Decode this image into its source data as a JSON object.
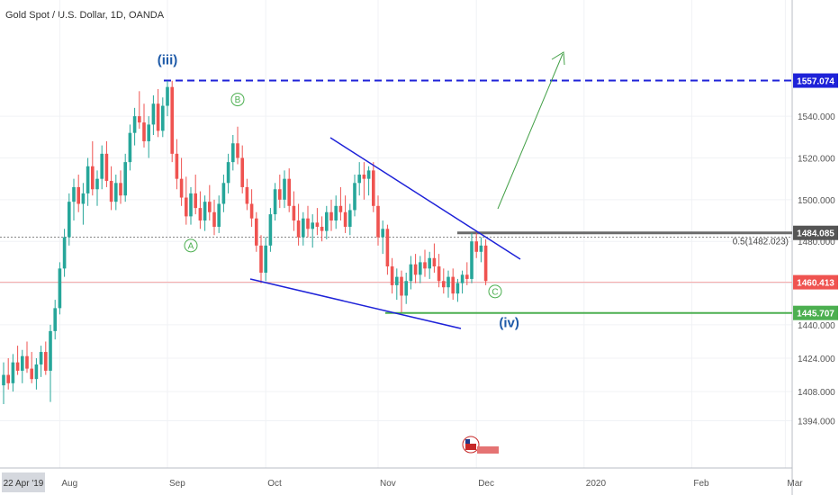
{
  "header": {
    "title": "Gold Spot / U.S. Dollar, 1D, OANDA"
  },
  "chart_data": {
    "type": "candlestick",
    "title": "Gold Spot / U.S. Dollar, 1D, OANDA",
    "ylim": [
      1380,
      1575
    ],
    "y_ticks": [
      {
        "value": 1394,
        "label": "1394.000"
      },
      {
        "value": 1408,
        "label": "1408.000"
      },
      {
        "value": 1424,
        "label": "1424.000"
      },
      {
        "value": 1440,
        "label": "1440.000"
      },
      {
        "value": 1460,
        "label": "1460.000"
      },
      {
        "value": 1480,
        "label": "1480.000"
      },
      {
        "value": 1500,
        "label": "1500.000"
      },
      {
        "value": 1520,
        "label": "1520.000"
      },
      {
        "value": 1540,
        "label": "1540.000"
      }
    ],
    "x_ticks": [
      {
        "bar": 12,
        "label": "Aug"
      },
      {
        "bar": 35,
        "label": "Sep"
      },
      {
        "bar": 56,
        "label": "Oct"
      },
      {
        "bar": 80,
        "label": "Nov"
      },
      {
        "bar": 101,
        "label": "Dec"
      },
      {
        "bar": 124,
        "label": "2020"
      },
      {
        "bar": 147,
        "label": "Feb"
      },
      {
        "bar": 167,
        "label": "Mar"
      }
    ],
    "x_start_label": "22 Apr '19",
    "price_labels": [
      {
        "value": 1557.074,
        "label": "1557.074",
        "color": "#1e22d8"
      },
      {
        "value": 1484.085,
        "label": "1484.085",
        "color": "#555555"
      },
      {
        "value": 1460.413,
        "label": "1460.413",
        "color": "#ef5350"
      },
      {
        "value": 1445.707,
        "label": "1445.707",
        "color": "#4caf50"
      }
    ],
    "fib_label": {
      "value": 1482.023,
      "label": "0.5(1482.023)"
    },
    "wave_labels": [
      {
        "text": "(iii)",
        "bar": 35,
        "value": 1567,
        "circled": false
      },
      {
        "text": "B",
        "bar": 50,
        "value": 1548,
        "circled": true
      },
      {
        "text": "A",
        "bar": 40,
        "value": 1478,
        "circled": true
      },
      {
        "text": "C",
        "bar": 105,
        "value": 1456,
        "circled": true
      },
      {
        "text": "(iv)",
        "bar": 108,
        "value": 1441,
        "circled": false
      }
    ],
    "candles": [
      {
        "o": 1411,
        "h": 1422,
        "l": 1402,
        "c": 1416
      },
      {
        "o": 1416,
        "h": 1424,
        "l": 1409,
        "c": 1412
      },
      {
        "o": 1412,
        "h": 1426,
        "l": 1408,
        "c": 1422
      },
      {
        "o": 1422,
        "h": 1430,
        "l": 1416,
        "c": 1418
      },
      {
        "o": 1418,
        "h": 1428,
        "l": 1412,
        "c": 1425
      },
      {
        "o": 1425,
        "h": 1432,
        "l": 1417,
        "c": 1419
      },
      {
        "o": 1419,
        "h": 1427,
        "l": 1412,
        "c": 1414
      },
      {
        "o": 1414,
        "h": 1424,
        "l": 1409,
        "c": 1421
      },
      {
        "o": 1421,
        "h": 1430,
        "l": 1415,
        "c": 1427
      },
      {
        "o": 1427,
        "h": 1432,
        "l": 1416,
        "c": 1418
      },
      {
        "o": 1418,
        "h": 1440,
        "l": 1403,
        "c": 1437
      },
      {
        "o": 1437,
        "h": 1452,
        "l": 1433,
        "c": 1448
      },
      {
        "o": 1448,
        "h": 1470,
        "l": 1445,
        "c": 1467
      },
      {
        "o": 1467,
        "h": 1486,
        "l": 1463,
        "c": 1482
      },
      {
        "o": 1482,
        "h": 1503,
        "l": 1478,
        "c": 1499
      },
      {
        "o": 1499,
        "h": 1510,
        "l": 1490,
        "c": 1506
      },
      {
        "o": 1506,
        "h": 1512,
        "l": 1494,
        "c": 1498
      },
      {
        "o": 1498,
        "h": 1508,
        "l": 1488,
        "c": 1503
      },
      {
        "o": 1503,
        "h": 1520,
        "l": 1497,
        "c": 1516
      },
      {
        "o": 1516,
        "h": 1528,
        "l": 1502,
        "c": 1505
      },
      {
        "o": 1505,
        "h": 1514,
        "l": 1497,
        "c": 1510
      },
      {
        "o": 1510,
        "h": 1526,
        "l": 1505,
        "c": 1522
      },
      {
        "o": 1522,
        "h": 1528,
        "l": 1506,
        "c": 1509
      },
      {
        "o": 1509,
        "h": 1516,
        "l": 1495,
        "c": 1499
      },
      {
        "o": 1499,
        "h": 1512,
        "l": 1495,
        "c": 1508
      },
      {
        "o": 1508,
        "h": 1514,
        "l": 1498,
        "c": 1502
      },
      {
        "o": 1502,
        "h": 1522,
        "l": 1499,
        "c": 1518
      },
      {
        "o": 1518,
        "h": 1536,
        "l": 1514,
        "c": 1532
      },
      {
        "o": 1532,
        "h": 1544,
        "l": 1526,
        "c": 1540
      },
      {
        "o": 1540,
        "h": 1552,
        "l": 1534,
        "c": 1537
      },
      {
        "o": 1537,
        "h": 1546,
        "l": 1525,
        "c": 1528
      },
      {
        "o": 1528,
        "h": 1540,
        "l": 1520,
        "c": 1536
      },
      {
        "o": 1536,
        "h": 1550,
        "l": 1531,
        "c": 1546
      },
      {
        "o": 1546,
        "h": 1553,
        "l": 1530,
        "c": 1533
      },
      {
        "o": 1533,
        "h": 1549,
        "l": 1530,
        "c": 1545
      },
      {
        "o": 1545,
        "h": 1557,
        "l": 1540,
        "c": 1554
      },
      {
        "o": 1554,
        "h": 1557,
        "l": 1518,
        "c": 1522
      },
      {
        "o": 1522,
        "h": 1529,
        "l": 1505,
        "c": 1510
      },
      {
        "o": 1510,
        "h": 1520,
        "l": 1497,
        "c": 1501
      },
      {
        "o": 1501,
        "h": 1511,
        "l": 1488,
        "c": 1492
      },
      {
        "o": 1492,
        "h": 1506,
        "l": 1488,
        "c": 1503
      },
      {
        "o": 1503,
        "h": 1512,
        "l": 1493,
        "c": 1496
      },
      {
        "o": 1496,
        "h": 1504,
        "l": 1486,
        "c": 1490
      },
      {
        "o": 1490,
        "h": 1502,
        "l": 1485,
        "c": 1499
      },
      {
        "o": 1499,
        "h": 1507,
        "l": 1490,
        "c": 1494
      },
      {
        "o": 1494,
        "h": 1500,
        "l": 1483,
        "c": 1487
      },
      {
        "o": 1487,
        "h": 1502,
        "l": 1484,
        "c": 1498
      },
      {
        "o": 1498,
        "h": 1512,
        "l": 1494,
        "c": 1508
      },
      {
        "o": 1508,
        "h": 1522,
        "l": 1503,
        "c": 1518
      },
      {
        "o": 1518,
        "h": 1531,
        "l": 1514,
        "c": 1527
      },
      {
        "o": 1527,
        "h": 1535,
        "l": 1517,
        "c": 1520
      },
      {
        "o": 1520,
        "h": 1526,
        "l": 1503,
        "c": 1506
      },
      {
        "o": 1506,
        "h": 1510,
        "l": 1495,
        "c": 1498
      },
      {
        "o": 1498,
        "h": 1505,
        "l": 1487,
        "c": 1491
      },
      {
        "o": 1491,
        "h": 1494,
        "l": 1475,
        "c": 1478
      },
      {
        "o": 1478,
        "h": 1483,
        "l": 1460,
        "c": 1465
      },
      {
        "o": 1465,
        "h": 1482,
        "l": 1461,
        "c": 1478
      },
      {
        "o": 1478,
        "h": 1496,
        "l": 1475,
        "c": 1493
      },
      {
        "o": 1493,
        "h": 1508,
        "l": 1490,
        "c": 1505
      },
      {
        "o": 1505,
        "h": 1512,
        "l": 1496,
        "c": 1500
      },
      {
        "o": 1500,
        "h": 1514,
        "l": 1496,
        "c": 1510
      },
      {
        "o": 1510,
        "h": 1515,
        "l": 1494,
        "c": 1497
      },
      {
        "o": 1497,
        "h": 1504,
        "l": 1485,
        "c": 1490
      },
      {
        "o": 1490,
        "h": 1498,
        "l": 1478,
        "c": 1482
      },
      {
        "o": 1482,
        "h": 1494,
        "l": 1478,
        "c": 1491
      },
      {
        "o": 1491,
        "h": 1497,
        "l": 1482,
        "c": 1486
      },
      {
        "o": 1486,
        "h": 1493,
        "l": 1477,
        "c": 1489
      },
      {
        "o": 1489,
        "h": 1496,
        "l": 1483,
        "c": 1487
      },
      {
        "o": 1487,
        "h": 1492,
        "l": 1480,
        "c": 1485
      },
      {
        "o": 1485,
        "h": 1497,
        "l": 1481,
        "c": 1494
      },
      {
        "o": 1494,
        "h": 1500,
        "l": 1485,
        "c": 1490
      },
      {
        "o": 1490,
        "h": 1502,
        "l": 1486,
        "c": 1497
      },
      {
        "o": 1497,
        "h": 1506,
        "l": 1490,
        "c": 1494
      },
      {
        "o": 1494,
        "h": 1502,
        "l": 1484,
        "c": 1487
      },
      {
        "o": 1487,
        "h": 1498,
        "l": 1483,
        "c": 1495
      },
      {
        "o": 1495,
        "h": 1512,
        "l": 1492,
        "c": 1508
      },
      {
        "o": 1508,
        "h": 1518,
        "l": 1502,
        "c": 1512
      },
      {
        "o": 1512,
        "h": 1518,
        "l": 1500,
        "c": 1510
      },
      {
        "o": 1510,
        "h": 1516,
        "l": 1502,
        "c": 1514
      },
      {
        "o": 1514,
        "h": 1518,
        "l": 1494,
        "c": 1497
      },
      {
        "o": 1497,
        "h": 1502,
        "l": 1478,
        "c": 1482
      },
      {
        "o": 1482,
        "h": 1490,
        "l": 1474,
        "c": 1486
      },
      {
        "o": 1486,
        "h": 1488,
        "l": 1464,
        "c": 1468
      },
      {
        "o": 1468,
        "h": 1472,
        "l": 1455,
        "c": 1459
      },
      {
        "o": 1459,
        "h": 1467,
        "l": 1452,
        "c": 1463
      },
      {
        "o": 1463,
        "h": 1466,
        "l": 1446,
        "c": 1454
      },
      {
        "o": 1454,
        "h": 1465,
        "l": 1450,
        "c": 1461
      },
      {
        "o": 1461,
        "h": 1473,
        "l": 1457,
        "c": 1469
      },
      {
        "o": 1469,
        "h": 1474,
        "l": 1460,
        "c": 1464
      },
      {
        "o": 1464,
        "h": 1473,
        "l": 1460,
        "c": 1470
      },
      {
        "o": 1470,
        "h": 1476,
        "l": 1463,
        "c": 1467
      },
      {
        "o": 1467,
        "h": 1475,
        "l": 1462,
        "c": 1472
      },
      {
        "o": 1472,
        "h": 1479,
        "l": 1465,
        "c": 1468
      },
      {
        "o": 1468,
        "h": 1474,
        "l": 1458,
        "c": 1461
      },
      {
        "o": 1461,
        "h": 1467,
        "l": 1455,
        "c": 1458
      },
      {
        "o": 1458,
        "h": 1466,
        "l": 1453,
        "c": 1463
      },
      {
        "o": 1463,
        "h": 1467,
        "l": 1452,
        "c": 1455
      },
      {
        "o": 1455,
        "h": 1462,
        "l": 1451,
        "c": 1460
      },
      {
        "o": 1460,
        "h": 1466,
        "l": 1455,
        "c": 1464
      },
      {
        "o": 1464,
        "h": 1470,
        "l": 1459,
        "c": 1462
      },
      {
        "o": 1462,
        "h": 1484,
        "l": 1460,
        "c": 1480
      },
      {
        "o": 1480,
        "h": 1484,
        "l": 1472,
        "c": 1475
      },
      {
        "o": 1475,
        "h": 1482,
        "l": 1470,
        "c": 1478
      },
      {
        "o": 1478,
        "h": 1481,
        "l": 1459,
        "c": 1461
      }
    ]
  }
}
